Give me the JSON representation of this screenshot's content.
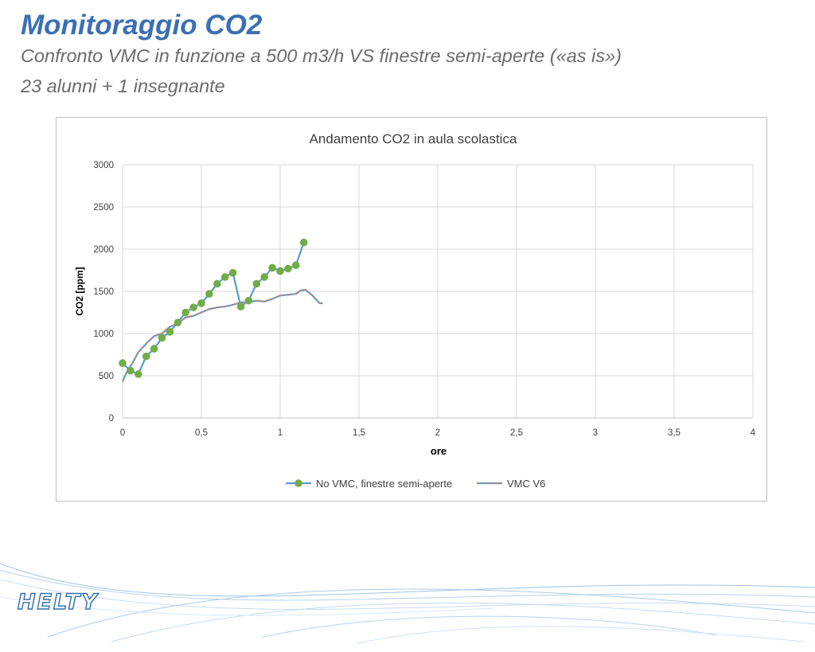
{
  "slide": {
    "title": "Monitoraggio CO2",
    "subtitle_line1": "Confronto VMC in funzione a 500 m3/h VS finestre semi-aperte («as is»)",
    "subtitle_line2": "23 alunni + 1 insegnante",
    "logo": "HELTY"
  },
  "colors": {
    "title": "#3a6fb3",
    "subtitle": "#6b6b6b",
    "series_no_vmc_line": "#5b9bd5",
    "series_no_vmc_marker": "#70ad47",
    "series_vmc_line": "#5b9bd5",
    "series_vmc_dash": "#ed7d31",
    "gridlines": "#d9d9d9",
    "logo": "#2f6fb0"
  },
  "chart_data": {
    "type": "line",
    "title": "Andamento CO2 in aula scolastica",
    "xlabel": "ore",
    "ylabel": "CO2 [ppm]",
    "xlim": [
      0,
      4
    ],
    "ylim": [
      0,
      3000
    ],
    "x_ticks": [
      "0",
      "0,5",
      "1",
      "1,5",
      "2",
      "2,5",
      "3",
      "3,5",
      "4"
    ],
    "y_ticks": [
      "0",
      "500",
      "1000",
      "1500",
      "2000",
      "2500",
      "3000"
    ],
    "grid": true,
    "legend_position": "bottom",
    "series": [
      {
        "name": "No VMC, finestre semi-aperte",
        "style": "line-with-markers",
        "points": [
          [
            0,
            650
          ],
          [
            0.05,
            560
          ],
          [
            0.1,
            520
          ],
          [
            0.15,
            730
          ],
          [
            0.2,
            820
          ],
          [
            0.25,
            950
          ],
          [
            0.3,
            1020
          ],
          [
            0.35,
            1130
          ],
          [
            0.4,
            1250
          ],
          [
            0.45,
            1310
          ],
          [
            0.5,
            1360
          ],
          [
            0.55,
            1470
          ],
          [
            0.6,
            1590
          ],
          [
            0.65,
            1670
          ],
          [
            0.7,
            1720
          ],
          [
            0.75,
            1320
          ],
          [
            0.8,
            1390
          ],
          [
            0.85,
            1590
          ],
          [
            0.9,
            1670
          ],
          [
            0.95,
            1780
          ],
          [
            1.0,
            1740
          ],
          [
            1.05,
            1770
          ],
          [
            1.1,
            1810
          ],
          [
            1.15,
            2080
          ]
        ]
      },
      {
        "name": "VMC V6",
        "style": "dashed-line",
        "points": [
          [
            0,
            430
          ],
          [
            0.03,
            560
          ],
          [
            0.06,
            640
          ],
          [
            0.1,
            780
          ],
          [
            0.15,
            880
          ],
          [
            0.2,
            970
          ],
          [
            0.25,
            1000
          ],
          [
            0.3,
            1080
          ],
          [
            0.35,
            1120
          ],
          [
            0.4,
            1190
          ],
          [
            0.45,
            1210
          ],
          [
            0.5,
            1250
          ],
          [
            0.55,
            1290
          ],
          [
            0.6,
            1310
          ],
          [
            0.65,
            1320
          ],
          [
            0.7,
            1340
          ],
          [
            0.75,
            1370
          ],
          [
            0.8,
            1370
          ],
          [
            0.85,
            1390
          ],
          [
            0.9,
            1380
          ],
          [
            0.95,
            1410
          ],
          [
            1.0,
            1450
          ],
          [
            1.05,
            1460
          ],
          [
            1.1,
            1470
          ],
          [
            1.13,
            1510
          ],
          [
            1.16,
            1520
          ],
          [
            1.2,
            1460
          ],
          [
            1.25,
            1360
          ],
          [
            1.27,
            1360
          ]
        ]
      }
    ]
  }
}
